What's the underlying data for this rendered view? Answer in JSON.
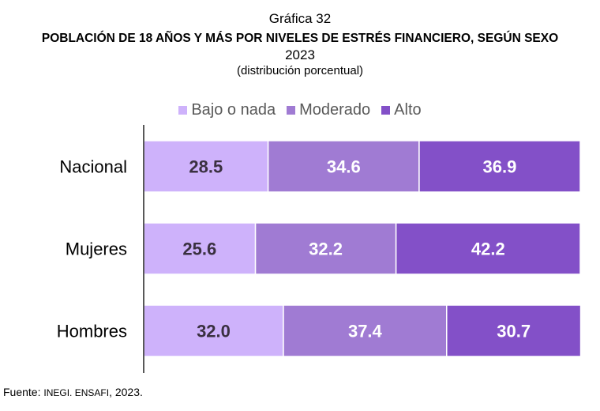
{
  "header": {
    "chart_number": "Gráfica 32",
    "title": "POBLACIÓN DE 18 AÑOS Y MÁS POR NIVELES DE ESTRÉS FINANCIERO, SEGÚN SEXO",
    "year": "2023",
    "subtitle": "(distribución porcentual)"
  },
  "legend": [
    {
      "label": "Bajo o nada",
      "color": "#ceb2fb"
    },
    {
      "label": "Moderado",
      "color": "#a07bd3"
    },
    {
      "label": "Alto",
      "color": "#8350c8"
    }
  ],
  "source": {
    "prefix": "Fuente: ",
    "org": "INEGI. ENSAFI",
    "suffix": ", 2023."
  },
  "chart_data": {
    "type": "bar",
    "orientation": "horizontal",
    "stacked": true,
    "title": "POBLACIÓN DE 18 AÑOS Y MÁS POR NIVELES DE ESTRÉS FINANCIERO, SEGÚN SEXO",
    "subtitle": "2023 (distribución porcentual)",
    "categories": [
      "Nacional",
      "Mujeres",
      "Hombres"
    ],
    "series": [
      {
        "name": "Bajo o nada",
        "values": [
          28.5,
          25.6,
          32.0
        ],
        "color": "#ceb2fb",
        "label_color": "#3a3040"
      },
      {
        "name": "Moderado",
        "values": [
          34.6,
          32.2,
          37.4
        ],
        "color": "#a07bd3",
        "label_color": "#ffffff"
      },
      {
        "name": "Alto",
        "values": [
          36.9,
          42.2,
          30.7
        ],
        "color": "#8350c8",
        "label_color": "#ffffff"
      }
    ],
    "xlim": [
      0,
      100
    ],
    "xlabel": "",
    "ylabel": "",
    "grid": false,
    "legend_position": "top-center",
    "data_labels": true
  }
}
